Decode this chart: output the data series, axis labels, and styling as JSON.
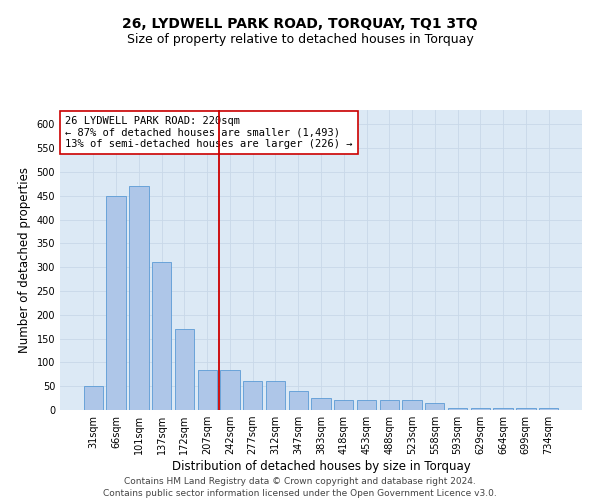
{
  "title": "26, LYDWELL PARK ROAD, TORQUAY, TQ1 3TQ",
  "subtitle": "Size of property relative to detached houses in Torquay",
  "xlabel": "Distribution of detached houses by size in Torquay",
  "ylabel": "Number of detached properties",
  "categories": [
    "31sqm",
    "66sqm",
    "101sqm",
    "137sqm",
    "172sqm",
    "207sqm",
    "242sqm",
    "277sqm",
    "312sqm",
    "347sqm",
    "383sqm",
    "418sqm",
    "453sqm",
    "488sqm",
    "523sqm",
    "558sqm",
    "593sqm",
    "629sqm",
    "664sqm",
    "699sqm",
    "734sqm"
  ],
  "values": [
    50,
    450,
    470,
    310,
    170,
    85,
    85,
    60,
    60,
    40,
    25,
    20,
    20,
    20,
    20,
    15,
    5,
    5,
    5,
    5,
    5
  ],
  "bar_color": "#aec6e8",
  "bar_edge_color": "#5b9bd5",
  "vline_x": 5.5,
  "vline_color": "#cc0000",
  "annotation_line1": "26 LYDWELL PARK ROAD: 220sqm",
  "annotation_line2": "← 87% of detached houses are smaller (1,493)",
  "annotation_line3": "13% of semi-detached houses are larger (226) →",
  "annotation_box_color": "#ffffff",
  "annotation_box_edge": "#cc0000",
  "ylim": [
    0,
    630
  ],
  "yticks": [
    0,
    50,
    100,
    150,
    200,
    250,
    300,
    350,
    400,
    450,
    500,
    550,
    600
  ],
  "grid_color": "#c8d8e8",
  "background_color": "#dce9f5",
  "footer1": "Contains HM Land Registry data © Crown copyright and database right 2024.",
  "footer2": "Contains public sector information licensed under the Open Government Licence v3.0.",
  "title_fontsize": 10,
  "subtitle_fontsize": 9,
  "xlabel_fontsize": 8.5,
  "ylabel_fontsize": 8.5,
  "tick_fontsize": 7,
  "annotation_fontsize": 7.5,
  "footer_fontsize": 6.5
}
